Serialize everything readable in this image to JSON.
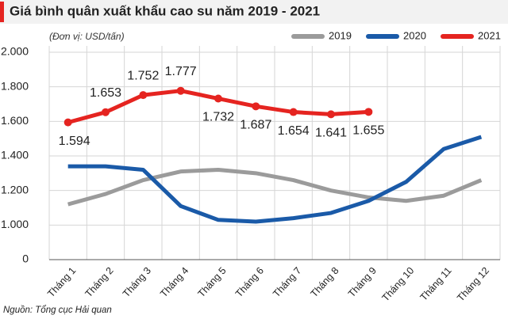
{
  "chart_data": {
    "type": "line",
    "title": "Giá bình quân xuất khẩu cao su năm 2019 - 2021",
    "subtitle": "(Đơn vị: USD/tấn)",
    "source": "Nguồn: Tổng cục Hải quan",
    "categories": [
      "Tháng 1",
      "Tháng 2",
      "Tháng 3",
      "Tháng 4",
      "Tháng 5",
      "Tháng 6",
      "Tháng 7",
      "Tháng 8",
      "Tháng 9",
      "Tháng 10",
      "Tháng 11",
      "Tháng 12"
    ],
    "series": [
      {
        "name": "2019",
        "color": "#9b9b9b",
        "values": [
          1120,
          1180,
          1260,
          1310,
          1320,
          1300,
          1260,
          1200,
          1160,
          1140,
          1170,
          1260
        ]
      },
      {
        "name": "2020",
        "color": "#1a5aa8",
        "values": [
          1340,
          1340,
          1320,
          1110,
          1030,
          1020,
          1040,
          1070,
          1140,
          1250,
          1440,
          1510
        ]
      },
      {
        "name": "2021",
        "color": "#e52420",
        "values": [
          1594,
          1653,
          1752,
          1777,
          1732,
          1687,
          1654,
          1641,
          1655,
          null,
          null,
          null
        ],
        "value_labels": [
          "1.594",
          "1.653",
          "1.752",
          "1.777",
          "1.732",
          "1.687",
          "1.654",
          "1.641",
          "1.655",
          null,
          null,
          null
        ]
      }
    ],
    "ylim": [
      0,
      2000
    ],
    "yticks": [
      0,
      {
        "value": 1000,
        "label": "1.000"
      },
      {
        "value": 1200,
        "label": "1.200"
      },
      {
        "value": 1400,
        "label": "1.400"
      },
      {
        "value": 1600,
        "label": "1.600"
      },
      {
        "value": 1800,
        "label": "1.800"
      },
      {
        "value": 2000,
        "label": "2.000"
      }
    ],
    "y_scale": "broken",
    "grid": true,
    "legend": "top-right"
  }
}
